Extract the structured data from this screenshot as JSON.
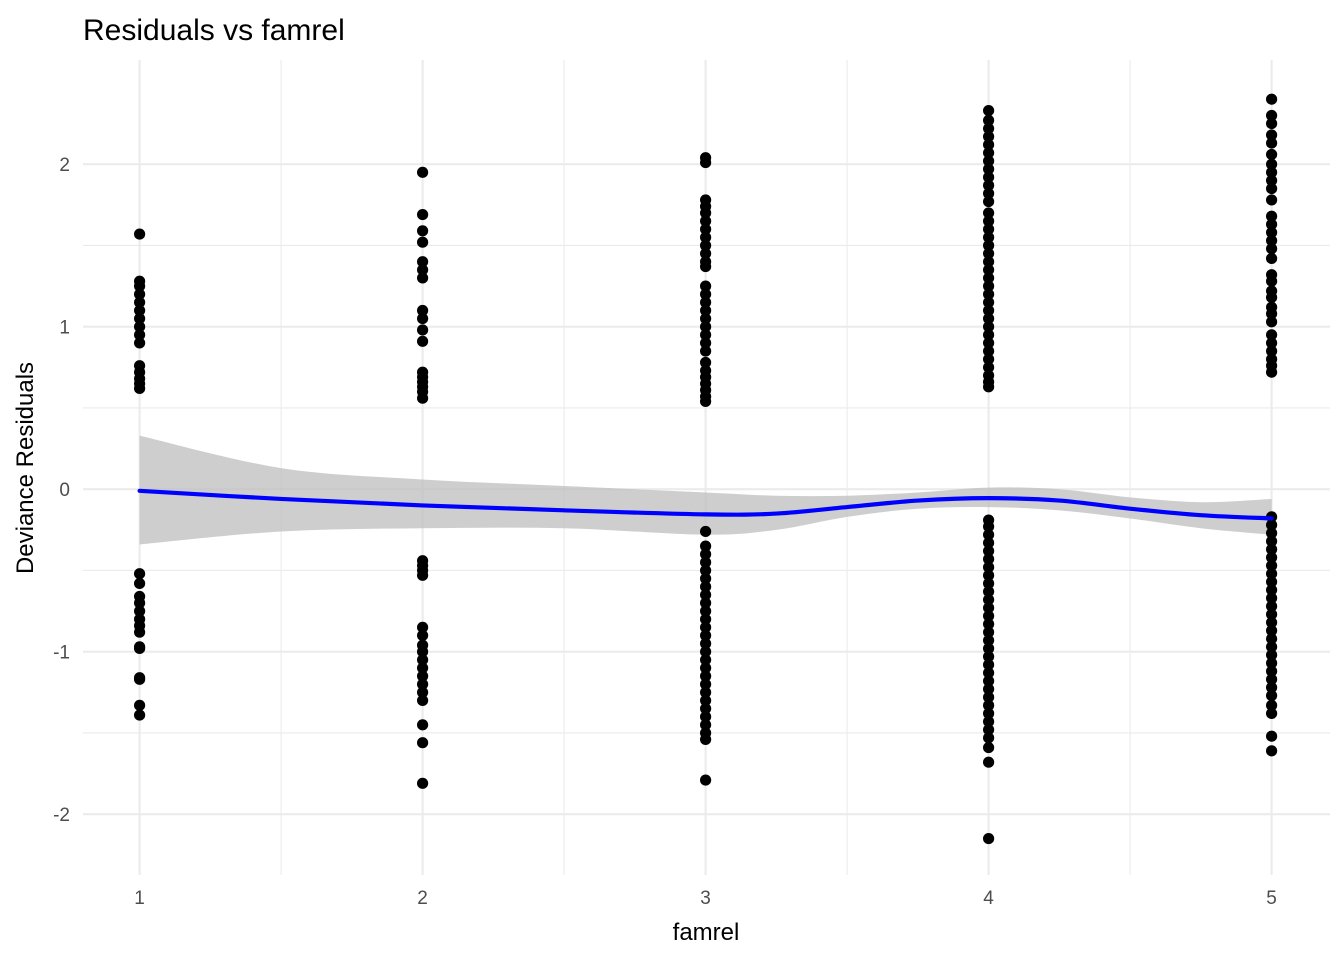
{
  "chart_data": {
    "type": "scatter",
    "title": "Residuals vs famrel",
    "xlabel": "famrel",
    "ylabel": "Deviance Residuals",
    "xlim": [
      0.8,
      5.15
    ],
    "ylim": [
      -2.35,
      2.55
    ],
    "x_ticks": [
      1,
      2,
      3,
      4,
      5
    ],
    "x_tick_labels": [
      "1",
      "2",
      "3",
      "4",
      "5"
    ],
    "y_ticks": [
      -2,
      -1,
      0,
      1,
      2
    ],
    "y_tick_labels": [
      "-2",
      "-1",
      "0",
      "1",
      "2"
    ],
    "grid": true,
    "legend": "none",
    "colors": {
      "points": "#000000",
      "smooth_line": "#0000ff",
      "confidence_band": "#bebebe"
    },
    "points": [
      {
        "x": 1,
        "y": [
          1.57,
          1.28,
          1.25,
          1.2,
          1.15,
          1.1,
          1.05,
          1.0,
          0.95,
          0.9,
          0.76,
          0.72,
          0.68,
          0.65,
          0.62,
          -0.52,
          -0.58,
          -0.66,
          -0.7,
          -0.75,
          -0.8,
          -0.84,
          -0.88,
          -0.97,
          -0.98,
          -1.16,
          -1.17,
          -1.33,
          -1.39
        ]
      },
      {
        "x": 2,
        "y": [
          1.95,
          1.69,
          1.59,
          1.52,
          1.4,
          1.35,
          1.3,
          1.1,
          1.05,
          0.98,
          0.91,
          0.72,
          0.69,
          0.66,
          0.63,
          0.6,
          0.56,
          -0.44,
          -0.47,
          -0.5,
          -0.53,
          -0.85,
          -0.9,
          -0.96,
          -1.0,
          -1.05,
          -1.1,
          -1.15,
          -1.2,
          -1.25,
          -1.3,
          -1.45,
          -1.56,
          -1.81
        ]
      },
      {
        "x": 3,
        "y": [
          2.04,
          2.01,
          1.78,
          1.74,
          1.7,
          1.65,
          1.6,
          1.55,
          1.5,
          1.45,
          1.4,
          1.37,
          1.25,
          1.2,
          1.15,
          1.1,
          1.05,
          1.0,
          0.95,
          0.9,
          0.85,
          0.78,
          0.73,
          0.69,
          0.65,
          0.61,
          0.57,
          0.54,
          -0.26,
          -0.35,
          -0.4,
          -0.45,
          -0.5,
          -0.55,
          -0.6,
          -0.65,
          -0.7,
          -0.75,
          -0.8,
          -0.85,
          -0.9,
          -0.95,
          -1.0,
          -1.05,
          -1.1,
          -1.15,
          -1.2,
          -1.25,
          -1.3,
          -1.35,
          -1.4,
          -1.45,
          -1.5,
          -1.54,
          -1.79
        ]
      },
      {
        "x": 4,
        "y": [
          2.33,
          2.27,
          2.22,
          2.17,
          2.12,
          2.07,
          2.02,
          1.97,
          1.92,
          1.87,
          1.82,
          1.77,
          1.7,
          1.65,
          1.6,
          1.55,
          1.5,
          1.45,
          1.4,
          1.35,
          1.3,
          1.25,
          1.2,
          1.15,
          1.1,
          1.05,
          1.0,
          0.95,
          0.9,
          0.85,
          0.8,
          0.75,
          0.7,
          0.66,
          0.63,
          -0.19,
          -0.23,
          -0.28,
          -0.33,
          -0.38,
          -0.43,
          -0.48,
          -0.53,
          -0.58,
          -0.63,
          -0.68,
          -0.73,
          -0.78,
          -0.83,
          -0.88,
          -0.93,
          -0.98,
          -1.03,
          -1.08,
          -1.13,
          -1.18,
          -1.23,
          -1.28,
          -1.33,
          -1.38,
          -1.43,
          -1.48,
          -1.53,
          -1.59,
          -1.68,
          -2.15
        ]
      },
      {
        "x": 5,
        "y": [
          2.4,
          2.3,
          2.25,
          2.18,
          2.13,
          2.06,
          2.0,
          1.95,
          1.9,
          1.85,
          1.78,
          1.68,
          1.63,
          1.58,
          1.53,
          1.48,
          1.42,
          1.32,
          1.28,
          1.22,
          1.18,
          1.12,
          1.08,
          1.03,
          0.95,
          0.9,
          0.85,
          0.8,
          0.76,
          0.72,
          -0.17,
          -0.22,
          -0.27,
          -0.32,
          -0.37,
          -0.42,
          -0.47,
          -0.52,
          -0.57,
          -0.62,
          -0.67,
          -0.72,
          -0.77,
          -0.82,
          -0.87,
          -0.92,
          -0.97,
          -1.02,
          -1.07,
          -1.12,
          -1.17,
          -1.22,
          -1.27,
          -1.33,
          -1.38,
          -1.52,
          -1.61
        ]
      }
    ],
    "smooth": {
      "x": [
        1.0,
        1.5,
        2.0,
        2.5,
        3.0,
        3.25,
        3.5,
        3.75,
        4.0,
        4.25,
        4.5,
        4.75,
        5.0
      ],
      "y": [
        -0.01,
        -0.06,
        -0.1,
        -0.13,
        -0.155,
        -0.15,
        -0.11,
        -0.07,
        -0.055,
        -0.07,
        -0.12,
        -0.16,
        -0.18
      ],
      "lower": [
        -0.34,
        -0.26,
        -0.24,
        -0.24,
        -0.28,
        -0.25,
        -0.17,
        -0.12,
        -0.11,
        -0.13,
        -0.18,
        -0.24,
        -0.28
      ],
      "upper": [
        0.33,
        0.13,
        0.06,
        0.02,
        -0.02,
        -0.04,
        -0.04,
        -0.02,
        0.01,
        0.0,
        -0.05,
        -0.08,
        -0.06
      ]
    }
  }
}
